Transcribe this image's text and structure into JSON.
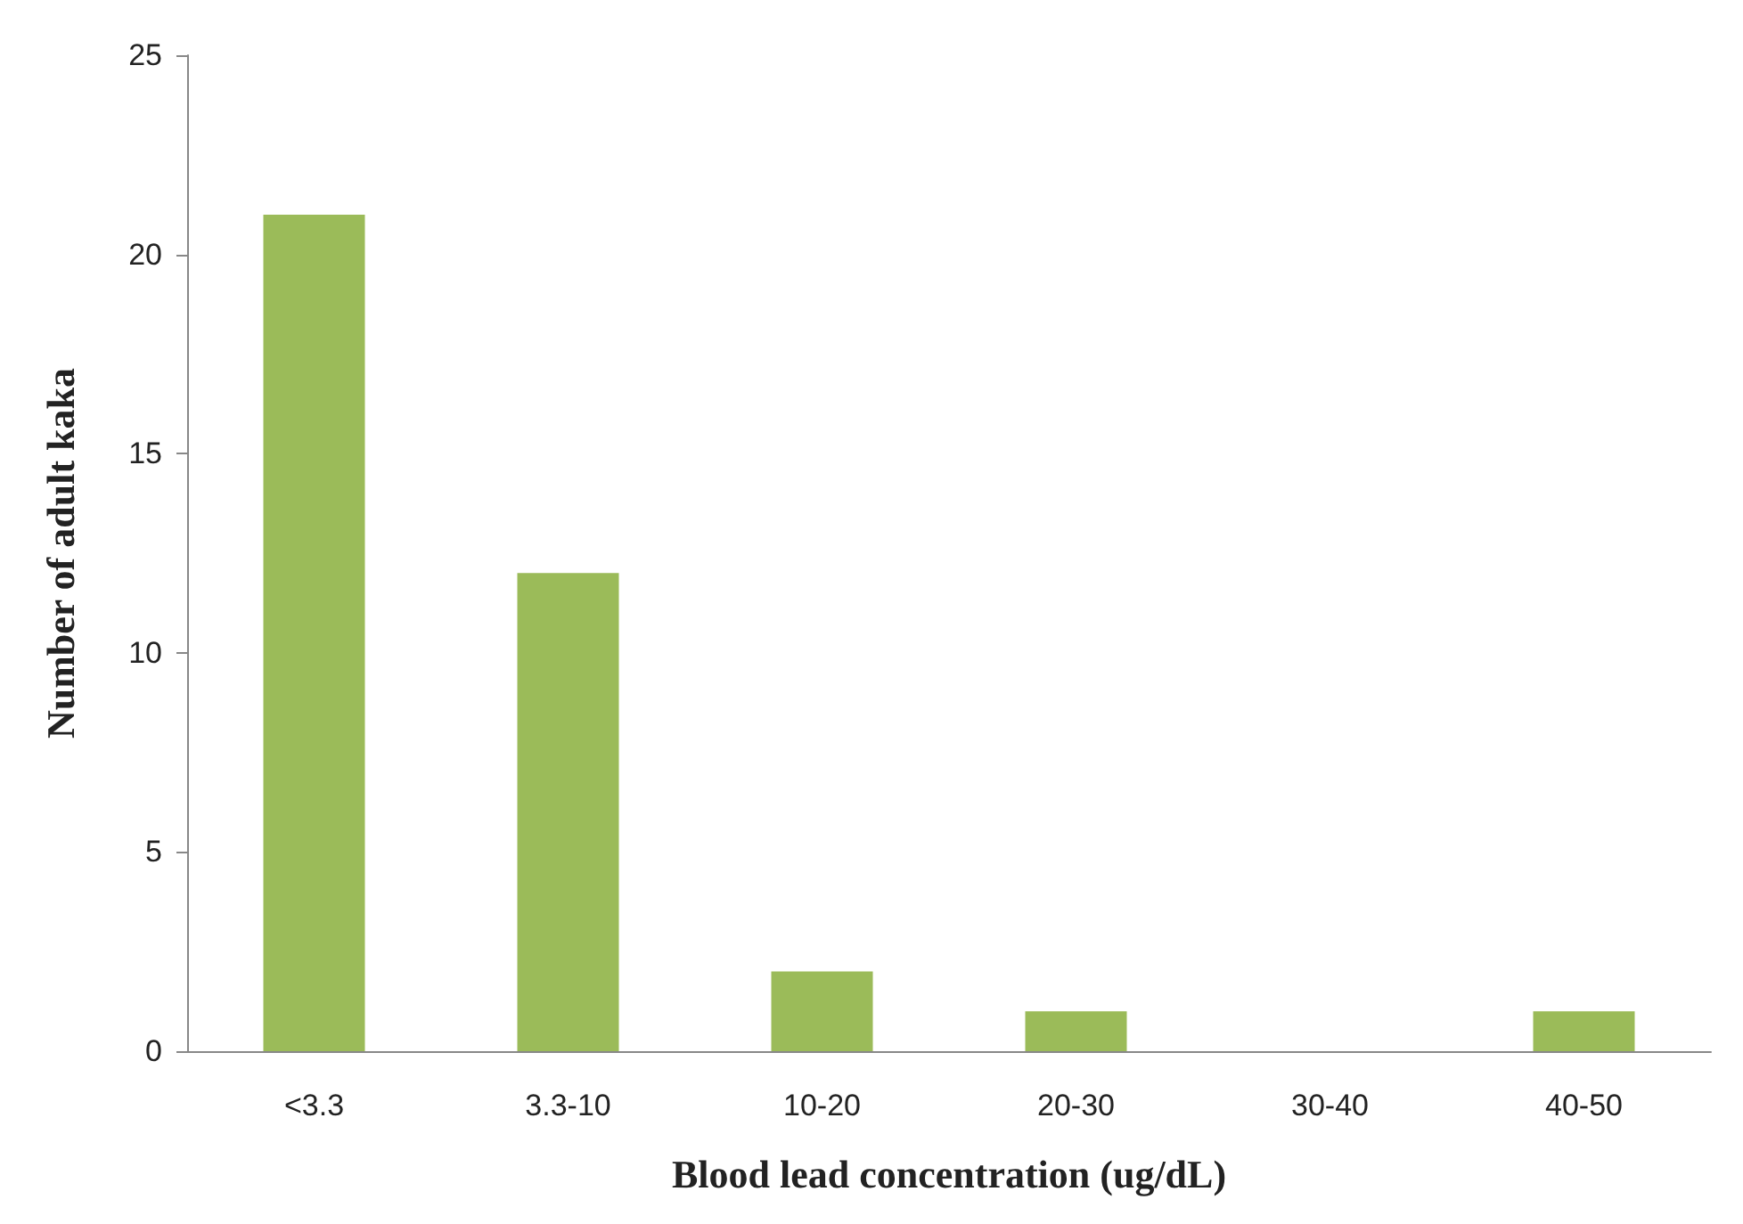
{
  "chart_data": {
    "type": "bar",
    "xlabel": "Blood lead concentration (ug/dL)",
    "ylabel": "Number of adult kaka",
    "categories": [
      "<3.3",
      "3.3-10",
      "10-20",
      "20-30",
      "30-40",
      "40-50"
    ],
    "values": [
      21,
      12,
      2,
      1,
      0,
      1
    ],
    "color": "#9bbb59",
    "ylim": [
      0,
      25
    ],
    "yticks": [
      0,
      5,
      10,
      15,
      20,
      25
    ]
  }
}
